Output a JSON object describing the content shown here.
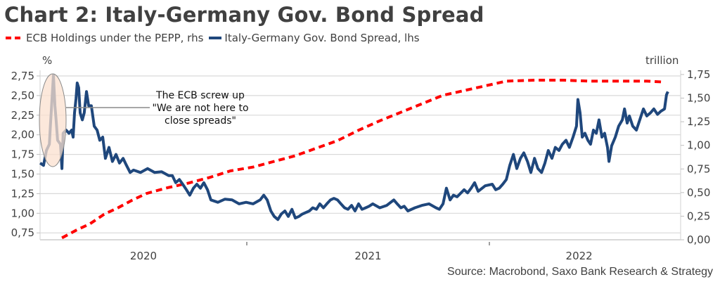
{
  "title": "Chart 2: Italy-Germany Gov. Bond Spread",
  "legend": [
    {
      "label": "ECB Holdings under the PEPP, rhs",
      "style": "dashed",
      "color": "#ff0000"
    },
    {
      "label": "Italy-Germany Gov. Bond Spread, lhs",
      "style": "solid",
      "color": "#1f477c"
    }
  ],
  "source": "Source: Macrobond, Saxo Bank Research & Strategy",
  "annotation": {
    "lines": [
      "The ECB screw up",
      "\"We are not here to",
      "close spreads\""
    ],
    "highlight_color": "#fbe0cf"
  },
  "chart_data": {
    "type": "line",
    "title": "Chart 2: Italy-Germany Gov. Bond Spread",
    "xlabel": "",
    "left_axis": {
      "label": "%",
      "ylim": [
        0.68,
        2.8
      ],
      "ticks": [
        "2,75",
        "2,50",
        "2,25",
        "2,00",
        "1,75",
        "1,50",
        "1,25",
        "1,00",
        "0,75"
      ],
      "tick_values": [
        2.75,
        2.5,
        2.25,
        2.0,
        1.75,
        1.5,
        1.25,
        1.0,
        0.75
      ]
    },
    "right_axis": {
      "label": "trillion",
      "ylim": [
        0.0,
        1.75
      ],
      "ticks": [
        "1,75",
        "1,50",
        "1,25",
        "1,00",
        "0,75",
        "0,50",
        "0,25",
        "0,00"
      ],
      "tick_values": [
        1.75,
        1.5,
        1.25,
        1.0,
        0.75,
        0.5,
        0.25,
        0.0
      ]
    },
    "x_axis": {
      "xlim": [
        2020.148,
        2022.74
      ],
      "tick_labels": [
        "2020",
        "2021",
        "2022"
      ],
      "label_positions": [
        2020.574,
        2021.5,
        2022.37
      ],
      "year_boundaries": [
        2021.0,
        2022.0
      ]
    },
    "grid": true,
    "legend_position": "top-left",
    "series": [
      {
        "name": "Italy-Germany Gov. Bond Spread, lhs",
        "axis": "left",
        "color": "#1f477c",
        "style": "solid",
        "x_px_ref": "fractional year",
        "points": [
          [
            2020.148,
            1.64
          ],
          [
            2020.162,
            1.61
          ],
          [
            2020.174,
            1.8
          ],
          [
            2020.186,
            1.88
          ],
          [
            2020.191,
            2.15
          ],
          [
            2020.197,
            2.46
          ],
          [
            2020.203,
            2.76
          ],
          [
            2020.209,
            2.37
          ],
          [
            2020.214,
            2.19
          ],
          [
            2020.22,
            1.93
          ],
          [
            2020.232,
            1.88
          ],
          [
            2020.238,
            1.57
          ],
          [
            2020.243,
            2.02
          ],
          [
            2020.255,
            2.06
          ],
          [
            2020.267,
            2.02
          ],
          [
            2020.278,
            2.06
          ],
          [
            2020.284,
            1.97
          ],
          [
            2020.29,
            2.28
          ],
          [
            2020.296,
            2.46
          ],
          [
            2020.301,
            2.66
          ],
          [
            2020.307,
            2.6
          ],
          [
            2020.313,
            2.28
          ],
          [
            2020.322,
            2.19
          ],
          [
            2020.33,
            2.28
          ],
          [
            2020.339,
            2.55
          ],
          [
            2020.348,
            2.37
          ],
          [
            2020.359,
            2.37
          ],
          [
            2020.371,
            2.11
          ],
          [
            2020.383,
            2.06
          ],
          [
            2020.394,
            1.93
          ],
          [
            2020.406,
            1.97
          ],
          [
            2020.417,
            1.7
          ],
          [
            2020.432,
            1.84
          ],
          [
            2020.446,
            1.66
          ],
          [
            2020.461,
            1.75
          ],
          [
            2020.475,
            1.64
          ],
          [
            2020.49,
            1.7
          ],
          [
            2020.504,
            1.61
          ],
          [
            2020.519,
            1.52
          ],
          [
            2020.533,
            1.55
          ],
          [
            2020.562,
            1.52
          ],
          [
            2020.591,
            1.57
          ],
          [
            2020.62,
            1.52
          ],
          [
            2020.649,
            1.53
          ],
          [
            2020.678,
            1.48
          ],
          [
            2020.693,
            1.48
          ],
          [
            2020.707,
            1.39
          ],
          [
            2020.722,
            1.43
          ],
          [
            2020.736,
            1.37
          ],
          [
            2020.751,
            1.3
          ],
          [
            2020.765,
            1.23
          ],
          [
            2020.78,
            1.32
          ],
          [
            2020.794,
            1.37
          ],
          [
            2020.809,
            1.32
          ],
          [
            2020.823,
            1.39
          ],
          [
            2020.838,
            1.3
          ],
          [
            2020.852,
            1.17
          ],
          [
            2020.881,
            1.14
          ],
          [
            2020.91,
            1.18
          ],
          [
            2020.939,
            1.17
          ],
          [
            2020.968,
            1.12
          ],
          [
            2020.997,
            1.14
          ],
          [
            2021.026,
            1.12
          ],
          [
            2021.055,
            1.17
          ],
          [
            2021.07,
            1.23
          ],
          [
            2021.084,
            1.17
          ],
          [
            2021.099,
            1.03
          ],
          [
            2021.113,
            0.96
          ],
          [
            2021.128,
            0.92
          ],
          [
            2021.142,
            0.99
          ],
          [
            2021.157,
            1.03
          ],
          [
            2021.171,
            0.96
          ],
          [
            2021.186,
            1.05
          ],
          [
            2021.2,
            0.94
          ],
          [
            2021.215,
            0.96
          ],
          [
            2021.229,
            0.99
          ],
          [
            2021.258,
            1.03
          ],
          [
            2021.272,
            1.07
          ],
          [
            2021.287,
            1.05
          ],
          [
            2021.301,
            1.12
          ],
          [
            2021.316,
            1.07
          ],
          [
            2021.33,
            1.12
          ],
          [
            2021.345,
            1.17
          ],
          [
            2021.359,
            1.19
          ],
          [
            2021.374,
            1.17
          ],
          [
            2021.388,
            1.12
          ],
          [
            2021.403,
            1.07
          ],
          [
            2021.417,
            1.05
          ],
          [
            2021.432,
            1.1
          ],
          [
            2021.446,
            1.03
          ],
          [
            2021.461,
            1.12
          ],
          [
            2021.475,
            1.05
          ],
          [
            2021.49,
            1.07
          ],
          [
            2021.504,
            1.09
          ],
          [
            2021.519,
            1.12
          ],
          [
            2021.548,
            1.07
          ],
          [
            2021.577,
            1.1
          ],
          [
            2021.606,
            1.17
          ],
          [
            2021.62,
            1.12
          ],
          [
            2021.635,
            1.07
          ],
          [
            2021.649,
            1.09
          ],
          [
            2021.664,
            1.03
          ],
          [
            2021.693,
            1.07
          ],
          [
            2021.722,
            1.1
          ],
          [
            2021.751,
            1.12
          ],
          [
            2021.78,
            1.07
          ],
          [
            2021.794,
            1.05
          ],
          [
            2021.809,
            1.12
          ],
          [
            2021.823,
            1.32
          ],
          [
            2021.838,
            1.17
          ],
          [
            2021.852,
            1.23
          ],
          [
            2021.867,
            1.21
          ],
          [
            2021.896,
            1.3
          ],
          [
            2021.91,
            1.26
          ],
          [
            2021.925,
            1.32
          ],
          [
            2021.939,
            1.39
          ],
          [
            2021.954,
            1.28
          ],
          [
            2021.983,
            1.35
          ],
          [
            2022.012,
            1.37
          ],
          [
            2022.026,
            1.3
          ],
          [
            2022.041,
            1.32
          ],
          [
            2022.055,
            1.37
          ],
          [
            2022.07,
            1.43
          ],
          [
            2022.084,
            1.61
          ],
          [
            2022.099,
            1.75
          ],
          [
            2022.113,
            1.57
          ],
          [
            2022.128,
            1.7
          ],
          [
            2022.142,
            1.77
          ],
          [
            2022.157,
            1.66
          ],
          [
            2022.171,
            1.52
          ],
          [
            2022.186,
            1.7
          ],
          [
            2022.2,
            1.57
          ],
          [
            2022.215,
            1.52
          ],
          [
            2022.229,
            1.64
          ],
          [
            2022.243,
            1.8
          ],
          [
            2022.258,
            1.7
          ],
          [
            2022.272,
            1.84
          ],
          [
            2022.287,
            1.8
          ],
          [
            2022.301,
            1.88
          ],
          [
            2022.316,
            1.93
          ],
          [
            2022.33,
            1.84
          ],
          [
            2022.345,
            1.97
          ],
          [
            2022.359,
            2.11
          ],
          [
            2022.365,
            2.45
          ],
          [
            2022.374,
            2.28
          ],
          [
            2022.383,
            1.97
          ],
          [
            2022.394,
            2.02
          ],
          [
            2022.406,
            1.93
          ],
          [
            2022.417,
            1.88
          ],
          [
            2022.429,
            2.06
          ],
          [
            2022.441,
            2.02
          ],
          [
            2022.452,
            2.19
          ],
          [
            2022.464,
            1.97
          ],
          [
            2022.475,
            2.02
          ],
          [
            2022.487,
            1.84
          ],
          [
            2022.493,
            1.66
          ],
          [
            2022.504,
            1.86
          ],
          [
            2022.519,
            1.97
          ],
          [
            2022.533,
            2.11
          ],
          [
            2022.548,
            2.19
          ],
          [
            2022.557,
            2.33
          ],
          [
            2022.568,
            2.15
          ],
          [
            2022.577,
            2.24
          ],
          [
            2022.591,
            2.11
          ],
          [
            2022.606,
            2.06
          ],
          [
            2022.62,
            2.19
          ],
          [
            2022.635,
            2.33
          ],
          [
            2022.649,
            2.24
          ],
          [
            2022.664,
            2.28
          ],
          [
            2022.678,
            2.33
          ],
          [
            2022.693,
            2.26
          ],
          [
            2022.707,
            2.3
          ],
          [
            2022.722,
            2.33
          ],
          [
            2022.73,
            2.51
          ],
          [
            2022.736,
            2.55
          ]
        ]
      },
      {
        "name": "ECB Holdings under the PEPP, rhs",
        "axis": "right",
        "color": "#ff0000",
        "style": "dashed",
        "points": [
          [
            2020.238,
            0.02
          ],
          [
            2020.296,
            0.1
          ],
          [
            2020.354,
            0.17
          ],
          [
            2020.412,
            0.27
          ],
          [
            2020.47,
            0.34
          ],
          [
            2020.528,
            0.42
          ],
          [
            2020.586,
            0.49
          ],
          [
            2020.672,
            0.55
          ],
          [
            2020.759,
            0.6
          ],
          [
            2020.846,
            0.66
          ],
          [
            2020.933,
            0.73
          ],
          [
            2021.026,
            0.77
          ],
          [
            2021.113,
            0.83
          ],
          [
            2021.2,
            0.89
          ],
          [
            2021.287,
            0.97
          ],
          [
            2021.374,
            1.05
          ],
          [
            2021.461,
            1.16
          ],
          [
            2021.548,
            1.26
          ],
          [
            2021.635,
            1.35
          ],
          [
            2021.722,
            1.44
          ],
          [
            2021.809,
            1.53
          ],
          [
            2021.896,
            1.58
          ],
          [
            2021.983,
            1.63
          ],
          [
            2022.07,
            1.68
          ],
          [
            2022.186,
            1.69
          ],
          [
            2022.301,
            1.69
          ],
          [
            2022.417,
            1.68
          ],
          [
            2022.533,
            1.68
          ],
          [
            2022.649,
            1.68
          ],
          [
            2022.722,
            1.67
          ]
        ]
      }
    ]
  }
}
